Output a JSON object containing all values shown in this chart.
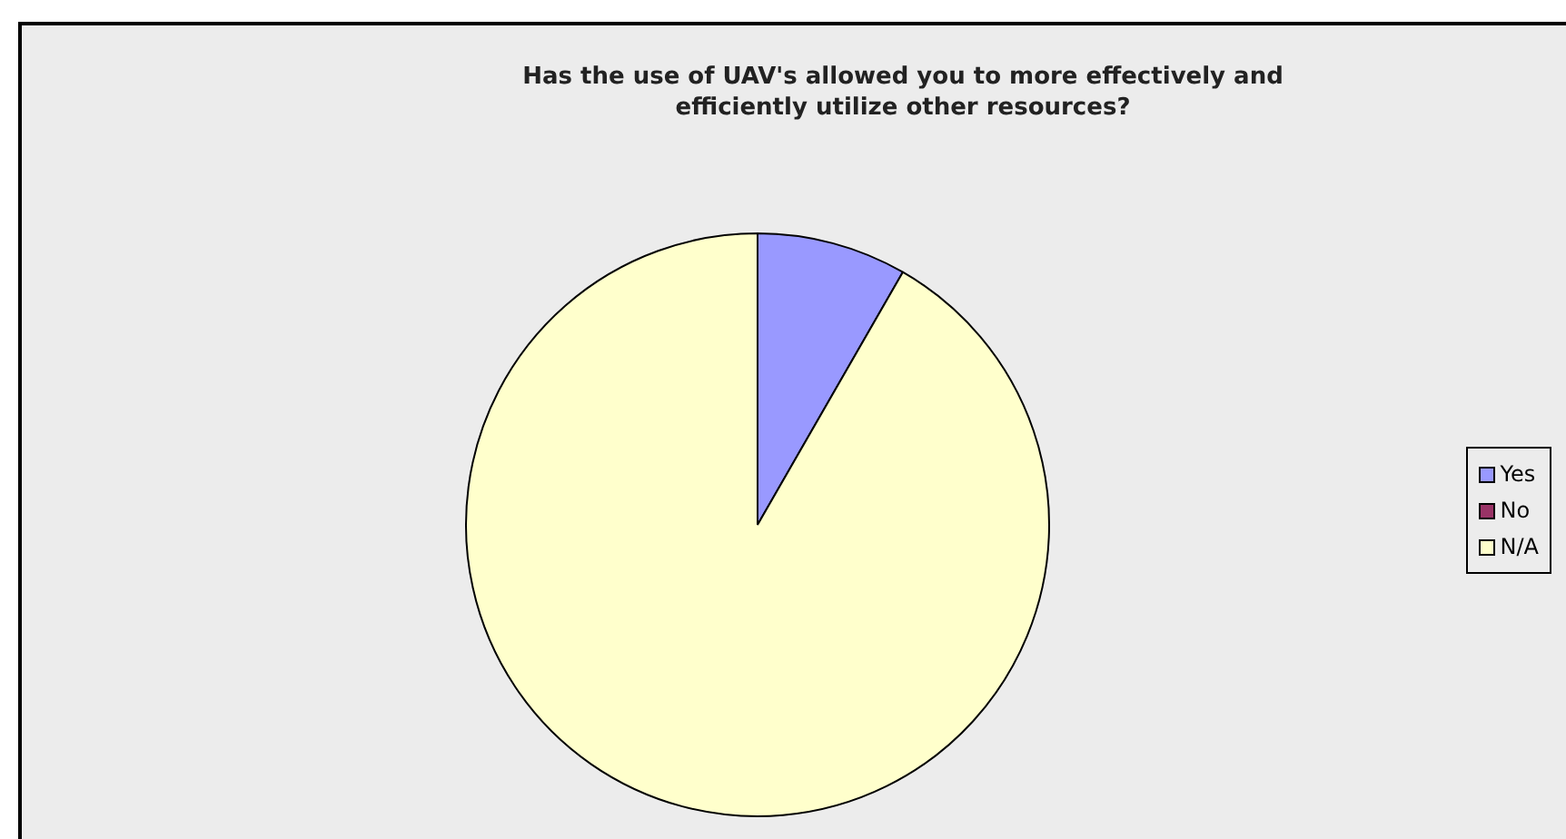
{
  "chart_data": {
    "type": "pie",
    "title": "Has the use of UAV's allowed you to more effectively and efficiently utilize other resources?",
    "categories": [
      "Yes",
      "No",
      "N/A"
    ],
    "values": [
      8.3,
      0,
      91.7
    ],
    "colors": [
      "#9999ff",
      "#993366",
      "#ffffcc"
    ],
    "legend": "right"
  }
}
